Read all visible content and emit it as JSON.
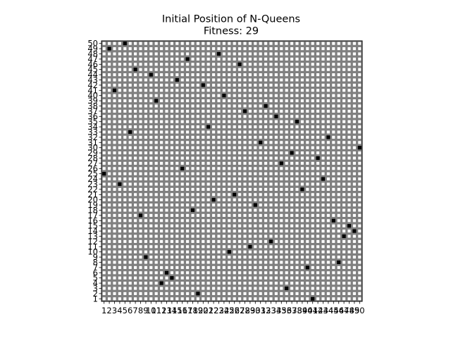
{
  "chart_data": {
    "type": "heatmap",
    "title": "Initial Position of N-Queens",
    "subtitle": "Fitness: 29",
    "n": 50,
    "x_tick_labels": [
      "1",
      "2",
      "3",
      "4",
      "5",
      "6",
      "7",
      "8",
      "9",
      "10",
      "11",
      "12",
      "13",
      "14",
      "15",
      "16",
      "17",
      "18",
      "19",
      "20",
      "21",
      "22",
      "23",
      "24",
      "25",
      "26",
      "27",
      "28",
      "29",
      "30",
      "31",
      "32",
      "33",
      "34",
      "35",
      "36",
      "37",
      "38",
      "39",
      "40",
      "41",
      "42",
      "43",
      "44",
      "45",
      "46",
      "47",
      "48",
      "49",
      "50"
    ],
    "y_tick_labels": [
      "1",
      "2",
      "3",
      "4",
      "5",
      "6",
      "7",
      "8",
      "9",
      "10",
      "11",
      "12",
      "13",
      "14",
      "15",
      "16",
      "17",
      "18",
      "19",
      "20",
      "21",
      "22",
      "23",
      "24",
      "25",
      "26",
      "27",
      "28",
      "29",
      "30",
      "31",
      "32",
      "33",
      "34",
      "35",
      "36",
      "37",
      "38",
      "39",
      "40",
      "41",
      "42",
      "43",
      "44",
      "45",
      "46",
      "47",
      "48",
      "49",
      "50"
    ],
    "queen_rows_by_column": [
      25,
      49,
      41,
      23,
      50,
      33,
      45,
      17,
      9,
      44,
      39,
      4,
      6,
      5,
      43,
      26,
      47,
      18,
      2,
      42,
      34,
      20,
      48,
      40,
      10,
      21,
      46,
      37,
      11,
      19,
      31,
      38,
      12,
      36,
      27,
      3,
      29,
      35,
      22,
      7,
      1,
      28,
      24,
      32,
      16,
      8,
      13,
      15,
      14,
      30
    ],
    "colors": {
      "empty_light": "#ffffff",
      "empty_dark": "#808080",
      "queen": "#000000",
      "frame": "#000000"
    }
  }
}
